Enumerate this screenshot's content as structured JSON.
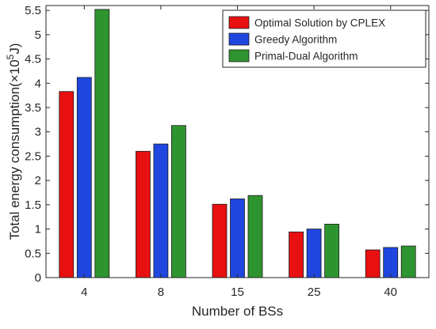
{
  "chart_data": {
    "type": "bar",
    "categories": [
      "4",
      "8",
      "15",
      "25",
      "40"
    ],
    "series": [
      {
        "name": "Optimal Solution by CPLEX",
        "color": "#e81010",
        "values": [
          3.83,
          2.6,
          1.51,
          0.94,
          0.57
        ]
      },
      {
        "name": "Greedy Algorithm",
        "color": "#1f47e0",
        "values": [
          4.12,
          2.75,
          1.62,
          1.0,
          0.62
        ]
      },
      {
        "name": "Primal-Dual Algorithm",
        "color": "#2e9430",
        "values": [
          5.52,
          3.13,
          1.69,
          1.1,
          0.65
        ]
      }
    ],
    "title": "",
    "xlabel": "Number of BSs",
    "ylabel_main": "Total energy consumption(×10",
    "ylabel_exponent": "5",
    "ylabel_unit": "J)",
    "ylim": [
      0,
      5.6
    ],
    "yticks": [
      "0",
      "0.5",
      "1",
      "1.5",
      "2",
      "2.5",
      "3",
      "3.5",
      "4",
      "4.5",
      "5",
      "5.5"
    ],
    "legend_position": "top-right",
    "grid": false
  }
}
